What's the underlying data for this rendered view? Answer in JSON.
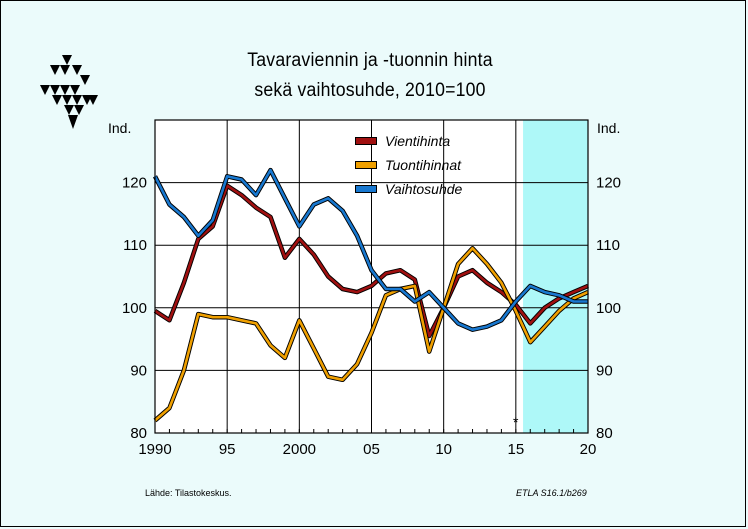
{
  "title_line1": "Tavaraviennin ja -tuonnin hinta",
  "title_line2": "sekä vaihtosuhde, 2010=100",
  "unit_left": "Ind.",
  "unit_right": "Ind.",
  "forecast_marker": "*",
  "footer": {
    "source": "Lähde:   Tilastokeskus.",
    "code": "ETLA S16.1/b269"
  },
  "colors": {
    "background": "#ebfbfb",
    "plot": "#ffffff",
    "forecast_band": "#aef8f8",
    "vientihinta": "#a01010",
    "tuontihinnat": "#f0a000",
    "vaihtosuhde": "#1878d0"
  },
  "chart_data": {
    "type": "line",
    "x": [
      1990,
      1991,
      1992,
      1993,
      1994,
      1995,
      1996,
      1997,
      1998,
      1999,
      2000,
      2001,
      2002,
      2003,
      2004,
      2005,
      2006,
      2007,
      2008,
      2009,
      2010,
      2011,
      2012,
      2013,
      2014,
      2015,
      2016,
      2017,
      2018,
      2019,
      2020
    ],
    "xlim": [
      1990,
      2020
    ],
    "ylim": [
      80,
      130
    ],
    "xticks": [
      1990,
      1995,
      2000,
      2005,
      2010,
      2015,
      2020
    ],
    "xtick_labels": [
      "1990",
      "95",
      "2000",
      "05",
      "10",
      "15",
      "20"
    ],
    "yticks": [
      80,
      90,
      100,
      110,
      120
    ],
    "ytick_labels": [
      "80",
      "90",
      "100",
      "110",
      "120"
    ],
    "forecast_from": 2015.5,
    "grid": true,
    "legend_position": "top-center",
    "series": [
      {
        "name": "Vientihinta",
        "color_key": "vientihinta",
        "values": [
          99.5,
          98.0,
          104.0,
          111.0,
          113.0,
          119.5,
          118.0,
          116.0,
          114.5,
          108.0,
          111.0,
          108.5,
          105.0,
          103.0,
          102.5,
          103.5,
          105.5,
          106.0,
          104.5,
          95.5,
          100.0,
          105.0,
          106.0,
          104.0,
          102.5,
          100.5,
          97.5,
          100.0,
          101.5,
          102.5,
          103.5
        ]
      },
      {
        "name": "Tuontihinnat",
        "color_key": "tuontihinnat",
        "values": [
          82.0,
          84.0,
          90.0,
          99.0,
          98.5,
          98.5,
          98.0,
          97.5,
          94.0,
          92.0,
          98.0,
          93.5,
          89.0,
          88.5,
          91.0,
          96.0,
          102.0,
          103.0,
          103.5,
          93.0,
          100.0,
          107.0,
          109.5,
          107.0,
          104.0,
          99.5,
          94.5,
          97.0,
          99.5,
          101.5,
          102.5
        ]
      },
      {
        "name": "Vaihtosuhde",
        "color_key": "vaihtosuhde",
        "values": [
          121.0,
          116.5,
          114.5,
          111.5,
          114.0,
          121.0,
          120.5,
          118.0,
          122.0,
          117.5,
          113.0,
          116.5,
          117.5,
          115.5,
          111.5,
          106.0,
          103.0,
          103.0,
          101.0,
          102.5,
          100.0,
          97.5,
          96.5,
          97.0,
          98.0,
          101.0,
          103.5,
          102.5,
          102.0,
          101.0,
          101.0
        ]
      }
    ]
  }
}
